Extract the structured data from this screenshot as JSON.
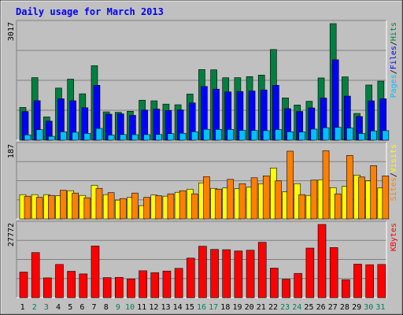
{
  "title": "Daily usage for March 2013",
  "colors": {
    "bg": "#c0c0c0",
    "title": "#0000ff",
    "hits": "#008040",
    "files": "#0000ff",
    "pages": "#00c0ff",
    "visits": "#ffff00",
    "sites": "#ff8000",
    "kbytes": "#ff0000",
    "weekend_day": "#00805c",
    "weekday_day": "#000000"
  },
  "chart_data": [
    {
      "type": "bar",
      "panel": "hits-files-pages",
      "ymax_label": "3017",
      "ymax": 3017,
      "legend": [
        {
          "text": "Pages",
          "color": "#00c0ff"
        },
        {
          "text": "/",
          "color": "#000000"
        },
        {
          "text": "Files",
          "color": "#0000ff"
        },
        {
          "text": "/",
          "color": "#000000"
        },
        {
          "text": "Hits",
          "color": "#008040"
        }
      ],
      "categories": [
        "1",
        "2",
        "3",
        "4",
        "5",
        "6",
        "7",
        "8",
        "9",
        "10",
        "11",
        "12",
        "13",
        "14",
        "15",
        "16",
        "17",
        "18",
        "19",
        "20",
        "21",
        "22",
        "23",
        "24",
        "25",
        "26",
        "27",
        "28",
        "29",
        "30",
        "31"
      ],
      "series": [
        {
          "name": "Hits",
          "values": [
            848,
            1619,
            602,
            1349,
            1580,
            1201,
            1928,
            733,
            722,
            748,
            1035,
            1019,
            934,
            917,
            1194,
            1828,
            1821,
            1616,
            1618,
            1646,
            1685,
            2347,
            1095,
            910,
            1008,
            1611,
            3017,
            1639,
            693,
            1428,
            1528
          ]
        },
        {
          "name": "Files",
          "values": [
            742,
            1022,
            493,
            1071,
            1020,
            840,
            1420,
            673,
            682,
            644,
            780,
            805,
            768,
            784,
            965,
            1391,
            1321,
            1250,
            1261,
            1274,
            1301,
            1420,
            816,
            744,
            835,
            1091,
            2081,
            1141,
            612,
            1019,
            1072
          ]
        },
        {
          "name": "Pages",
          "values": [
            138,
            272,
            100,
            218,
            205,
            176,
            305,
            133,
            146,
            142,
            145,
            148,
            170,
            179,
            220,
            282,
            278,
            277,
            254,
            252,
            247,
            276,
            219,
            211,
            286,
            323,
            332,
            313,
            174,
            240,
            247
          ]
        }
      ]
    },
    {
      "type": "bar",
      "panel": "visits-sites",
      "ymax_label": "187",
      "ymax": 187,
      "legend": [
        {
          "text": "Sites",
          "color": "#ff8000"
        },
        {
          "text": "/",
          "color": "#000000"
        },
        {
          "text": "Visits",
          "color": "#ffff00"
        }
      ],
      "categories": [
        "1",
        "2",
        "3",
        "4",
        "5",
        "6",
        "7",
        "8",
        "9",
        "10",
        "11",
        "12",
        "13",
        "14",
        "15",
        "16",
        "17",
        "18",
        "19",
        "20",
        "21",
        "22",
        "23",
        "24",
        "25",
        "26",
        "27",
        "28",
        "29",
        "30",
        "31"
      ],
      "series": [
        {
          "name": "Visits",
          "values": [
            62,
            62,
            62,
            59,
            72,
            60,
            86,
            62,
            48,
            55,
            34,
            61,
            58,
            68,
            76,
            92,
            78,
            79,
            77,
            81,
            90,
            130,
            69,
            90,
            60,
            100,
            80,
            83,
            112,
            97,
            79
          ]
        },
        {
          "name": "Sites",
          "values": [
            58,
            55,
            60,
            73,
            66,
            54,
            78,
            67,
            52,
            66,
            55,
            59,
            64,
            72,
            64,
            108,
            76,
            101,
            90,
            105,
            110,
            97,
            173,
            62,
            99,
            174,
            64,
            162,
            107,
            136,
            110
          ]
        }
      ]
    },
    {
      "type": "bar",
      "panel": "kbytes",
      "ymax_label": "27772",
      "ymax": 27772,
      "legend": [
        {
          "text": "KBytes",
          "color": "#ff0000"
        }
      ],
      "categories": [
        "1",
        "2",
        "3",
        "4",
        "5",
        "6",
        "7",
        "8",
        "9",
        "10",
        "11",
        "12",
        "13",
        "14",
        "15",
        "16",
        "17",
        "18",
        "19",
        "20",
        "21",
        "22",
        "23",
        "24",
        "25",
        "26",
        "27",
        "28",
        "29",
        "30",
        "31"
      ],
      "series": [
        {
          "name": "KBytes",
          "values": [
            9700,
            17100,
            7500,
            12600,
            10000,
            9000,
            19600,
            7600,
            7700,
            7100,
            10200,
            9500,
            10100,
            11100,
            15000,
            19500,
            18300,
            18200,
            17700,
            18000,
            21000,
            11200,
            7000,
            9200,
            18800,
            27772,
            19000,
            6800,
            12700,
            12500,
            12600
          ]
        }
      ]
    }
  ],
  "days": [
    {
      "label": "1",
      "weekend": false
    },
    {
      "label": "2",
      "weekend": true
    },
    {
      "label": "3",
      "weekend": true
    },
    {
      "label": "4",
      "weekend": false
    },
    {
      "label": "5",
      "weekend": false
    },
    {
      "label": "6",
      "weekend": false
    },
    {
      "label": "7",
      "weekend": false
    },
    {
      "label": "8",
      "weekend": false
    },
    {
      "label": "9",
      "weekend": true
    },
    {
      "label": "10",
      "weekend": true
    },
    {
      "label": "11",
      "weekend": false
    },
    {
      "label": "12",
      "weekend": false
    },
    {
      "label": "13",
      "weekend": false
    },
    {
      "label": "14",
      "weekend": false
    },
    {
      "label": "15",
      "weekend": false
    },
    {
      "label": "16",
      "weekend": true
    },
    {
      "label": "17",
      "weekend": true
    },
    {
      "label": "18",
      "weekend": false
    },
    {
      "label": "19",
      "weekend": false
    },
    {
      "label": "20",
      "weekend": false
    },
    {
      "label": "21",
      "weekend": false
    },
    {
      "label": "22",
      "weekend": false
    },
    {
      "label": "23",
      "weekend": true
    },
    {
      "label": "24",
      "weekend": true
    },
    {
      "label": "25",
      "weekend": false
    },
    {
      "label": "26",
      "weekend": false
    },
    {
      "label": "27",
      "weekend": false
    },
    {
      "label": "28",
      "weekend": false
    },
    {
      "label": "29",
      "weekend": false
    },
    {
      "label": "30",
      "weekend": true
    },
    {
      "label": "31",
      "weekend": true
    }
  ]
}
